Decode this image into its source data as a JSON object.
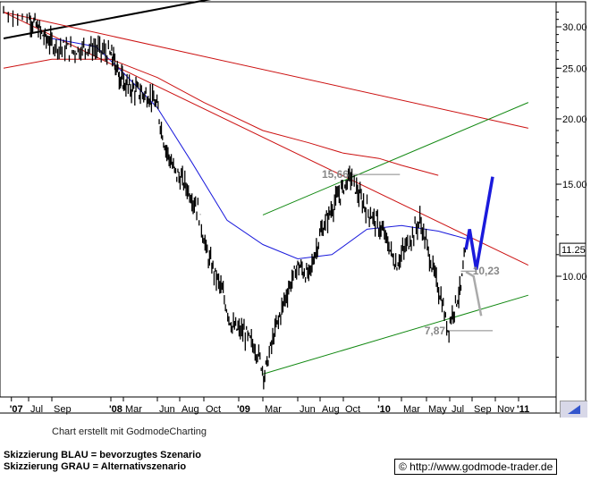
{
  "chart_data": {
    "type": "candlestick",
    "y_scale": "log",
    "y_ticks": [
      10.0,
      15.0,
      20.0,
      25.0,
      30.0
    ],
    "y_tick_labels": [
      "10.00",
      "15.00",
      "20.00",
      "25.00",
      "30.00"
    ],
    "ylim": [
      6.3,
      32.5
    ],
    "x_ticks": [
      {
        "label": "'07",
        "date": "2007-06-20"
      },
      {
        "label": "Jul",
        "date": "2007-07-01"
      },
      {
        "label": "Sep",
        "date": "2007-09-01"
      },
      {
        "label": "'08",
        "date": "2008-01-01"
      },
      {
        "label": "Mar",
        "date": "2008-03-01"
      },
      {
        "label": "Jun",
        "date": "2008-06-01"
      },
      {
        "label": "Aug",
        "date": "2008-08-01"
      },
      {
        "label": "Oct",
        "date": "2008-10-01"
      },
      {
        "label": "'09",
        "date": "2009-01-01"
      },
      {
        "label": "Mar",
        "date": "2009-03-01"
      },
      {
        "label": "Jun",
        "date": "2009-06-01"
      },
      {
        "label": "Aug",
        "date": "2009-08-01"
      },
      {
        "label": "Oct",
        "date": "2009-10-01"
      },
      {
        "label": "'10",
        "date": "2010-01-01"
      },
      {
        "label": "Mar",
        "date": "2010-03-01"
      },
      {
        "label": "May",
        "date": "2010-05-01"
      },
      {
        "label": "Jul",
        "date": "2010-07-01"
      },
      {
        "label": "Sep",
        "date": "2010-09-01"
      },
      {
        "label": "Nov",
        "date": "2010-11-01"
      },
      {
        "label": "'11",
        "date": "2011-01-01"
      }
    ],
    "current_price_label": "11.25",
    "current_price": 11.25,
    "price_path": [
      [
        "2007-06-15",
        32.0
      ],
      [
        "2007-07-15",
        30.5
      ],
      [
        "2007-08-15",
        28.5
      ],
      [
        "2007-09-15",
        27.5
      ],
      [
        "2007-10-15",
        27.0
      ],
      [
        "2007-11-15",
        27.5
      ],
      [
        "2007-12-15",
        27.0
      ],
      [
        "2008-01-15",
        26.0
      ],
      [
        "2008-02-15",
        24.0
      ],
      [
        "2008-03-15",
        23.0
      ],
      [
        "2008-04-15",
        22.5
      ],
      [
        "2008-05-15",
        22.0
      ],
      [
        "2008-06-01",
        21.0
      ],
      [
        "2008-06-20",
        18.0
      ],
      [
        "2008-07-15",
        16.0
      ],
      [
        "2008-08-15",
        15.0
      ],
      [
        "2008-09-15",
        13.5
      ],
      [
        "2008-10-10",
        11.0
      ],
      [
        "2008-11-15",
        9.5
      ],
      [
        "2008-12-15",
        8.0
      ],
      [
        "2009-01-15",
        7.8
      ],
      [
        "2009-02-15",
        7.2
      ],
      [
        "2009-03-05",
        6.5
      ],
      [
        "2009-04-01",
        7.8
      ],
      [
        "2009-05-01",
        9.2
      ],
      [
        "2009-06-01",
        10.5
      ],
      [
        "2009-07-01",
        10.0
      ],
      [
        "2009-08-01",
        12.0
      ],
      [
        "2009-09-01",
        13.5
      ],
      [
        "2009-10-01",
        14.8
      ],
      [
        "2009-10-20",
        15.6
      ],
      [
        "2009-11-15",
        14.0
      ],
      [
        "2009-12-15",
        13.0
      ],
      [
        "2010-01-15",
        12.0
      ],
      [
        "2010-02-15",
        10.5
      ],
      [
        "2010-03-15",
        11.5
      ],
      [
        "2010-04-15",
        12.8
      ],
      [
        "2010-05-15",
        10.5
      ],
      [
        "2010-06-10",
        9.0
      ],
      [
        "2010-06-25",
        7.9
      ],
      [
        "2010-07-15",
        8.8
      ],
      [
        "2010-08-01",
        9.5
      ],
      [
        "2010-08-15",
        11.25
      ]
    ],
    "series": [
      {
        "kind": "moving_average_fast",
        "color": "#1a1adc",
        "points": [
          [
            "2007-09-01",
            28.5
          ],
          [
            "2007-12-01",
            27.5
          ],
          [
            "2008-03-01",
            24.5
          ],
          [
            "2008-06-01",
            21.0
          ],
          [
            "2008-09-01",
            16.5
          ],
          [
            "2008-12-01",
            12.8
          ],
          [
            "2009-03-01",
            11.5
          ],
          [
            "2009-06-01",
            10.8
          ],
          [
            "2009-09-01",
            11.0
          ],
          [
            "2009-12-01",
            12.3
          ],
          [
            "2010-03-01",
            12.5
          ],
          [
            "2010-06-01",
            12.2
          ],
          [
            "2010-08-15",
            11.8
          ]
        ]
      },
      {
        "kind": "moving_average_slow",
        "color": "#cc1111",
        "points": [
          [
            "2007-06-15",
            25.0
          ],
          [
            "2007-09-01",
            26.0
          ],
          [
            "2008-01-01",
            26.0
          ],
          [
            "2008-06-01",
            24.0
          ],
          [
            "2008-10-01",
            21.5
          ],
          [
            "2009-03-01",
            19.0
          ],
          [
            "2009-07-01",
            18.0
          ],
          [
            "2009-10-01",
            17.2
          ],
          [
            "2010-01-01",
            16.8
          ],
          [
            "2010-03-01",
            16.3
          ],
          [
            "2010-06-01",
            15.6
          ]
        ]
      }
    ],
    "trendlines": [
      {
        "color": "#000000",
        "from": [
          "2007-06-15",
          28.5
        ],
        "to": [
          "2008-10-30",
          34.0
        ]
      },
      {
        "color": "#cc1111",
        "from": [
          "2007-06-15",
          32.0
        ],
        "to": [
          "2011-01-25",
          10.5
        ]
      },
      {
        "color": "#cc1111",
        "from": [
          "2007-06-15",
          32.0
        ],
        "to": [
          "2011-01-25",
          19.2
        ]
      },
      {
        "color": "#118811",
        "from": [
          "2009-03-01",
          6.5
        ],
        "to": [
          "2011-01-25",
          9.2
        ]
      },
      {
        "color": "#118811",
        "from": [
          "2009-03-01",
          13.1
        ],
        "to": [
          "2011-01-25",
          21.5
        ]
      },
      {
        "color": "#888888",
        "from": [
          "2009-10-20",
          15.66
        ],
        "to": [
          "2010-02-25",
          15.66
        ]
      },
      {
        "color": "#888888",
        "from": [
          "2010-06-25",
          7.87
        ],
        "to": [
          "2010-10-25",
          7.87
        ]
      },
      {
        "color": "#888888",
        "from": [
          "2010-08-01",
          10.23
        ],
        "to": [
          "2010-09-10",
          10.23
        ]
      }
    ],
    "scenarios": [
      {
        "name": "Skizzierung BLAU",
        "color": "#1a1adc",
        "path": [
          [
            "2010-08-15",
            11.25
          ],
          [
            "2010-08-25",
            12.3
          ],
          [
            "2010-09-12",
            10.3
          ],
          [
            "2010-10-25",
            15.5
          ]
        ]
      },
      {
        "name": "Skizzierung GRAU",
        "color": "#aaaaaa",
        "path": [
          [
            "2010-08-15",
            10.2
          ],
          [
            "2010-09-05",
            10.0
          ],
          [
            "2010-09-25",
            8.4
          ]
        ]
      }
    ],
    "annotations": [
      {
        "text": "15,66",
        "date": "2009-08-15",
        "value": 15.66
      },
      {
        "text": "10,23",
        "date": "2010-09-12",
        "value": 10.23
      },
      {
        "text": "7,87",
        "date": "2010-05-05",
        "value": 7.87
      }
    ]
  },
  "credit": "Chart erstellt mit GodmodeCharting",
  "legend": {
    "line1": "Skizzierung BLAU = bevorzugtes Szenario",
    "line2": "Skizzierung GRAU = Alternativszenario"
  },
  "footer_url": "© http://www.godmode-trader.de"
}
